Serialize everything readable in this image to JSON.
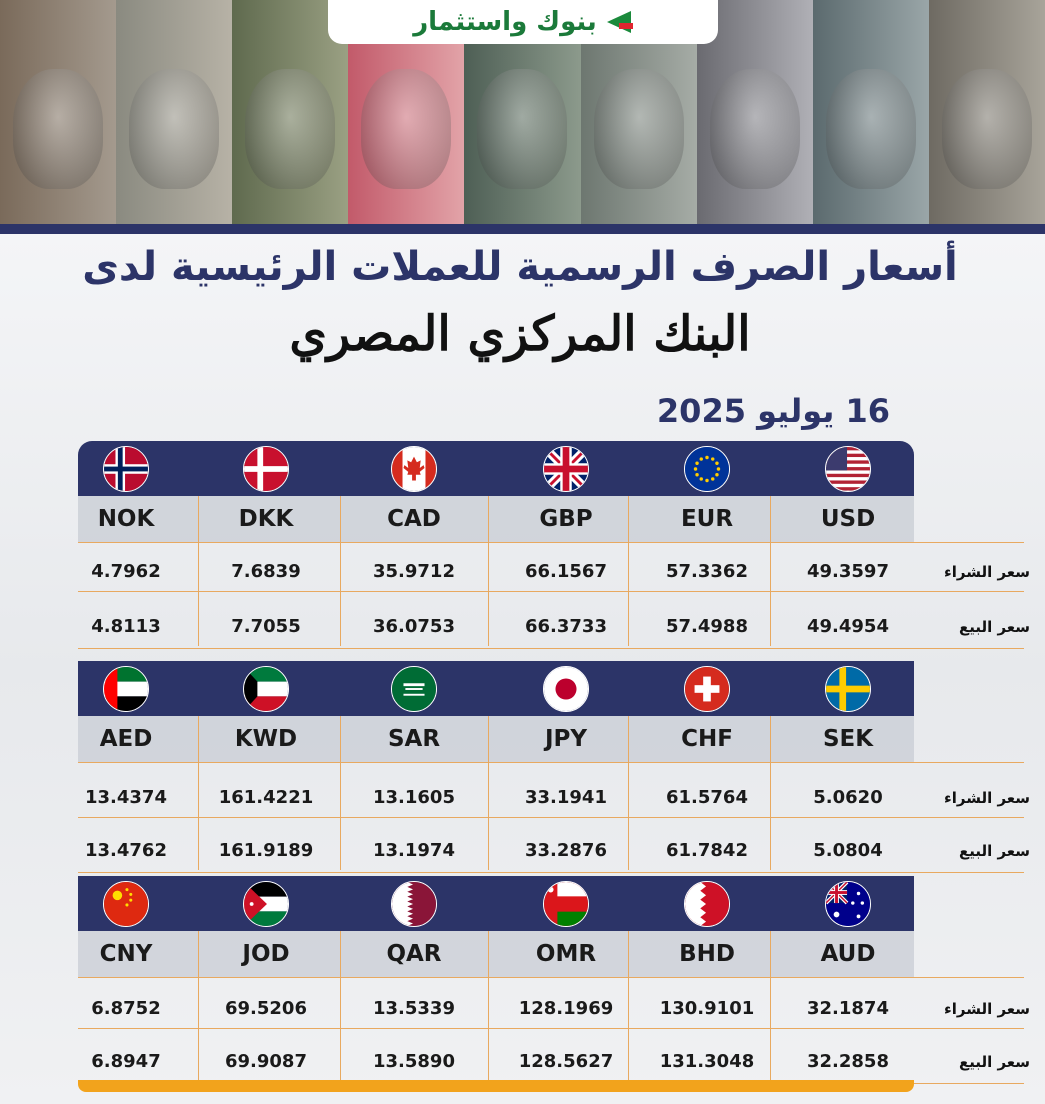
{
  "logo": {
    "text": "بنوك واستثمار"
  },
  "title": {
    "line1": "أسعار الصرف الرسمية للعملات الرئيسية لدى",
    "line2": "البنك المركزي المصري"
  },
  "date": "16 يوليو  2025",
  "row_labels": {
    "buy": "سعر الشراء",
    "sell": "سعر البيع"
  },
  "colors": {
    "navy": "#2c3468",
    "accent": "#f2a31c",
    "separator": "#e8a960"
  },
  "blocks": [
    {
      "currencies": [
        {
          "code": "USD",
          "flag": "usa-flag-icon",
          "buy": "49.3597",
          "sell": "49.4954"
        },
        {
          "code": "EUR",
          "flag": "eu-flag-icon",
          "buy": "57.3362",
          "sell": "57.4988"
        },
        {
          "code": "GBP",
          "flag": "uk-flag-icon",
          "buy": "66.1567",
          "sell": "66.3733"
        },
        {
          "code": "CAD",
          "flag": "canada-flag-icon",
          "buy": "35.9712",
          "sell": "36.0753"
        },
        {
          "code": "DKK",
          "flag": "denmark-flag-icon",
          "buy": "7.6839",
          "sell": "7.7055"
        },
        {
          "code": "NOK",
          "flag": "norway-flag-icon",
          "buy": "4.7962",
          "sell": "4.8113"
        }
      ]
    },
    {
      "currencies": [
        {
          "code": "SEK",
          "flag": "sweden-flag-icon",
          "buy": "5.0620",
          "sell": "5.0804"
        },
        {
          "code": "CHF",
          "flag": "switzerland-flag-icon",
          "buy": "61.5764",
          "sell": "61.7842"
        },
        {
          "code": "JPY",
          "flag": "japan-flag-icon",
          "buy": "33.1941",
          "sell": "33.2876"
        },
        {
          "code": "SAR",
          "flag": "saudi-flag-icon",
          "buy": "13.1605",
          "sell": "13.1974"
        },
        {
          "code": "KWD",
          "flag": "kuwait-flag-icon",
          "buy": "161.4221",
          "sell": "161.9189"
        },
        {
          "code": "AED",
          "flag": "uae-flag-icon",
          "buy": "13.4374",
          "sell": "13.4762"
        }
      ]
    },
    {
      "currencies": [
        {
          "code": "AUD",
          "flag": "australia-flag-icon",
          "buy": "32.1874",
          "sell": "32.2858"
        },
        {
          "code": "BHD",
          "flag": "bahrain-flag-icon",
          "buy": "130.9101",
          "sell": "131.3048"
        },
        {
          "code": "OMR",
          "flag": "oman-flag-icon",
          "buy": "128.1969",
          "sell": "128.5627"
        },
        {
          "code": "QAR",
          "flag": "qatar-flag-icon",
          "buy": "13.5339",
          "sell": "13.5890"
        },
        {
          "code": "JOD",
          "flag": "jordan-flag-icon",
          "buy": "69.5206",
          "sell": "69.9087"
        },
        {
          "code": "CNY",
          "flag": "china-flag-icon",
          "buy": "6.8752",
          "sell": "6.8947"
        }
      ]
    }
  ]
}
